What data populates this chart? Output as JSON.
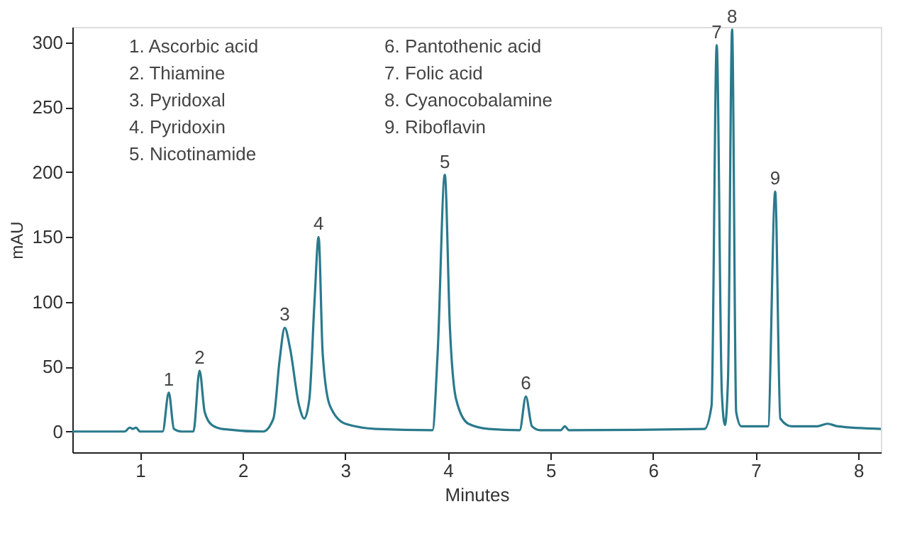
{
  "chart_data": {
    "type": "line",
    "xlabel": "Minutes",
    "ylabel": "mAU",
    "xlim": [
      0.34,
      8.22
    ],
    "xticks": [
      1,
      2,
      3,
      4,
      5,
      6,
      7,
      8
    ],
    "ylim": [
      -16,
      312
    ],
    "yticks": [
      0,
      50,
      100,
      150,
      200,
      250,
      300
    ],
    "grid": false,
    "line_style": "solid",
    "marker": "none",
    "series": [
      {
        "color": "#2a7a8c",
        "x": [
          0.34,
          0.85,
          0.9,
          0.93,
          0.96,
          1.0,
          1.22,
          1.28,
          1.33,
          1.4,
          1.52,
          1.58,
          1.63,
          1.7,
          1.8,
          2.2,
          2.3,
          2.36,
          2.41,
          2.46,
          2.55,
          2.6,
          2.65,
          2.7,
          2.74,
          2.78,
          2.85,
          3.0,
          3.3,
          3.85,
          3.9,
          3.97,
          4.02,
          4.08,
          4.2,
          4.4,
          4.7,
          4.76,
          4.82,
          4.9,
          5.1,
          5.14,
          5.18,
          6.5,
          6.57,
          6.62,
          6.67,
          6.7,
          6.73,
          6.77,
          6.81,
          6.86,
          7.12,
          7.19,
          7.24,
          7.35,
          7.6,
          7.7,
          7.8,
          8.22
        ],
        "values": [
          0,
          0,
          3,
          2,
          3,
          0,
          0,
          30,
          2,
          0,
          0,
          47,
          15,
          5,
          2,
          0,
          10,
          55,
          80,
          65,
          20,
          10,
          25,
          100,
          150,
          60,
          20,
          6,
          2,
          1,
          60,
          198,
          80,
          25,
          6,
          2,
          1,
          27,
          4,
          1,
          1,
          4,
          1,
          2,
          20,
          298,
          30,
          5,
          40,
          310,
          15,
          4,
          4,
          185,
          10,
          4,
          4,
          6,
          4,
          2
        ]
      }
    ],
    "annotations": [
      {
        "text": "1",
        "x": 1.28,
        "y": 30
      },
      {
        "text": "2",
        "x": 1.58,
        "y": 47
      },
      {
        "text": "3",
        "x": 2.41,
        "y": 80
      },
      {
        "text": "4",
        "x": 2.74,
        "y": 150
      },
      {
        "text": "5",
        "x": 3.97,
        "y": 198
      },
      {
        "text": "6",
        "x": 4.76,
        "y": 27
      },
      {
        "text": "7",
        "x": 6.62,
        "y": 298
      },
      {
        "text": "8",
        "x": 6.77,
        "y": 310
      },
      {
        "text": "9",
        "x": 7.19,
        "y": 185
      },
      "1. Ascorbic acid",
      "2. Thiamine",
      "3. Pyridoxal",
      "4. Pyridoxin",
      "5. Nicotinamide",
      "6. Pantothenic acid",
      "7. Folic acid",
      "8. Cyanocobalamine",
      "9. Riboflavin"
    ]
  }
}
